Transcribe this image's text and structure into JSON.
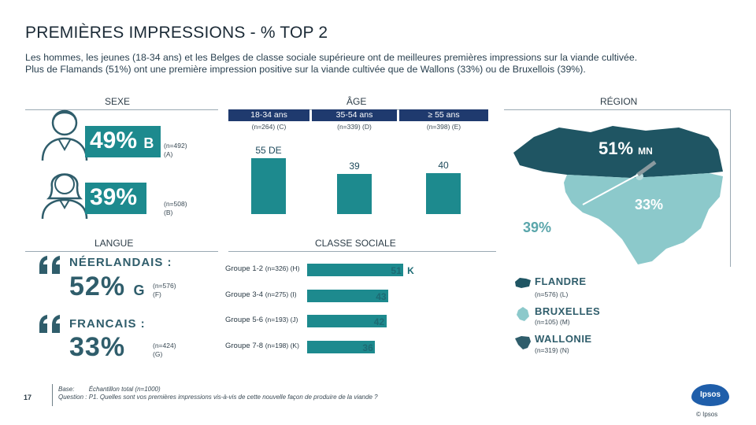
{
  "title": "PREMIÈRES IMPRESSIONS - % TOP 2",
  "intro": [
    "Les hommes, les jeunes (18-34 ans) et les Belges de classe sociale supérieure ont de meilleures premières impressions sur la viande cultivée.",
    "Plus de Flamands (51%) ont une première impression positive sur la viande cultivée que de Wallons (33%) ou de Bruxellois (39%)."
  ],
  "sexe": {
    "label": "SEXE",
    "rows": [
      {
        "pct": "49%",
        "sig": "B",
        "n": "(n=492)",
        "code": "(A)",
        "value": 49
      },
      {
        "pct": "39%",
        "sig": "",
        "n": "(n=508)",
        "code": "(B)",
        "value": 39
      }
    ]
  },
  "age": {
    "label": "ÂGE",
    "groups": [
      {
        "name": "18-34 ans",
        "n": "(n=264) (C)",
        "value": 55,
        "label": "55 DE"
      },
      {
        "name": "35-54 ans",
        "n": "(n=339) (D)",
        "value": 39,
        "label": "39"
      },
      {
        "name": "≥ 55 ans",
        "n": "(n=398) (E)",
        "value": 40,
        "label": "40"
      }
    ]
  },
  "region": {
    "label": "RÉGION",
    "flandre_pct": "51%",
    "flandre_sig": "MN",
    "wallonie_pct": "33%",
    "bruxelles_pct": "39%",
    "legend": [
      {
        "name": "FLANDRE",
        "n": "(n=576) (L)"
      },
      {
        "name": "BRUXELLES",
        "n": "(n=105) (M)"
      },
      {
        "name": "WALLONIE",
        "n": "(n=319) (N)"
      }
    ],
    "colors": {
      "flandre": "#1f5563",
      "wallonie": "#8cc9cb",
      "bruxelles": "#b9dcdd"
    }
  },
  "langue": {
    "label": "LANGUE",
    "rows": [
      {
        "name": "NÉERLANDAIS :",
        "pct": "52%",
        "sig": "G",
        "n": "(n=576)",
        "code": "(F)"
      },
      {
        "name": "FRANCAIS :",
        "pct": "33%",
        "sig": "",
        "n": "(n=424)",
        "code": "(G)"
      }
    ]
  },
  "classe": {
    "label": "CLASSE SOCIALE",
    "rows": [
      {
        "name": "Groupe 1-2",
        "n": "(n=326) (H)",
        "value": 51,
        "label": "51",
        "sig": "K"
      },
      {
        "name": "Groupe 3-4",
        "n": "(n=275) (I)",
        "value": 43,
        "label": "43",
        "sig": ""
      },
      {
        "name": "Groupe 5-6",
        "n": "(n=193) (J)",
        "value": 42,
        "label": "42",
        "sig": ""
      },
      {
        "name": "Groupe 7-8",
        "n": "(n=198) (K)",
        "value": 36,
        "label": "36",
        "sig": ""
      }
    ]
  },
  "footer": {
    "page": "17",
    "base_label": "Base:",
    "base_text": "Échantillon total (n=1000)",
    "question_label": "Question :",
    "question_text": "P1. Quelles sont vos premières impressions vis-à-vis de cette nouvelle façon de produire de la viande ?",
    "logo": "Ipsos",
    "copyright": "© Ipsos"
  },
  "chart_data": [
    {
      "type": "bar",
      "title": "ÂGE",
      "categories": [
        "18-34 ans",
        "35-54 ans",
        "≥ 55 ans"
      ],
      "values": [
        55,
        39,
        40
      ]
    },
    {
      "type": "bar",
      "title": "CLASSE SOCIALE",
      "categories": [
        "Groupe 1-2",
        "Groupe 3-4",
        "Groupe 5-6",
        "Groupe 7-8"
      ],
      "values": [
        51,
        43,
        42,
        36
      ]
    },
    {
      "type": "bar",
      "title": "SEXE",
      "categories": [
        "A",
        "B"
      ],
      "values": [
        49,
        39
      ]
    },
    {
      "type": "bar",
      "title": "LANGUE",
      "categories": [
        "NÉERLANDAIS",
        "FRANCAIS"
      ],
      "values": [
        52,
        33
      ]
    },
    {
      "type": "bar",
      "title": "RÉGION",
      "categories": [
        "FLANDRE",
        "BRUXELLES",
        "WALLONIE"
      ],
      "values": [
        51,
        39,
        33
      ]
    }
  ]
}
